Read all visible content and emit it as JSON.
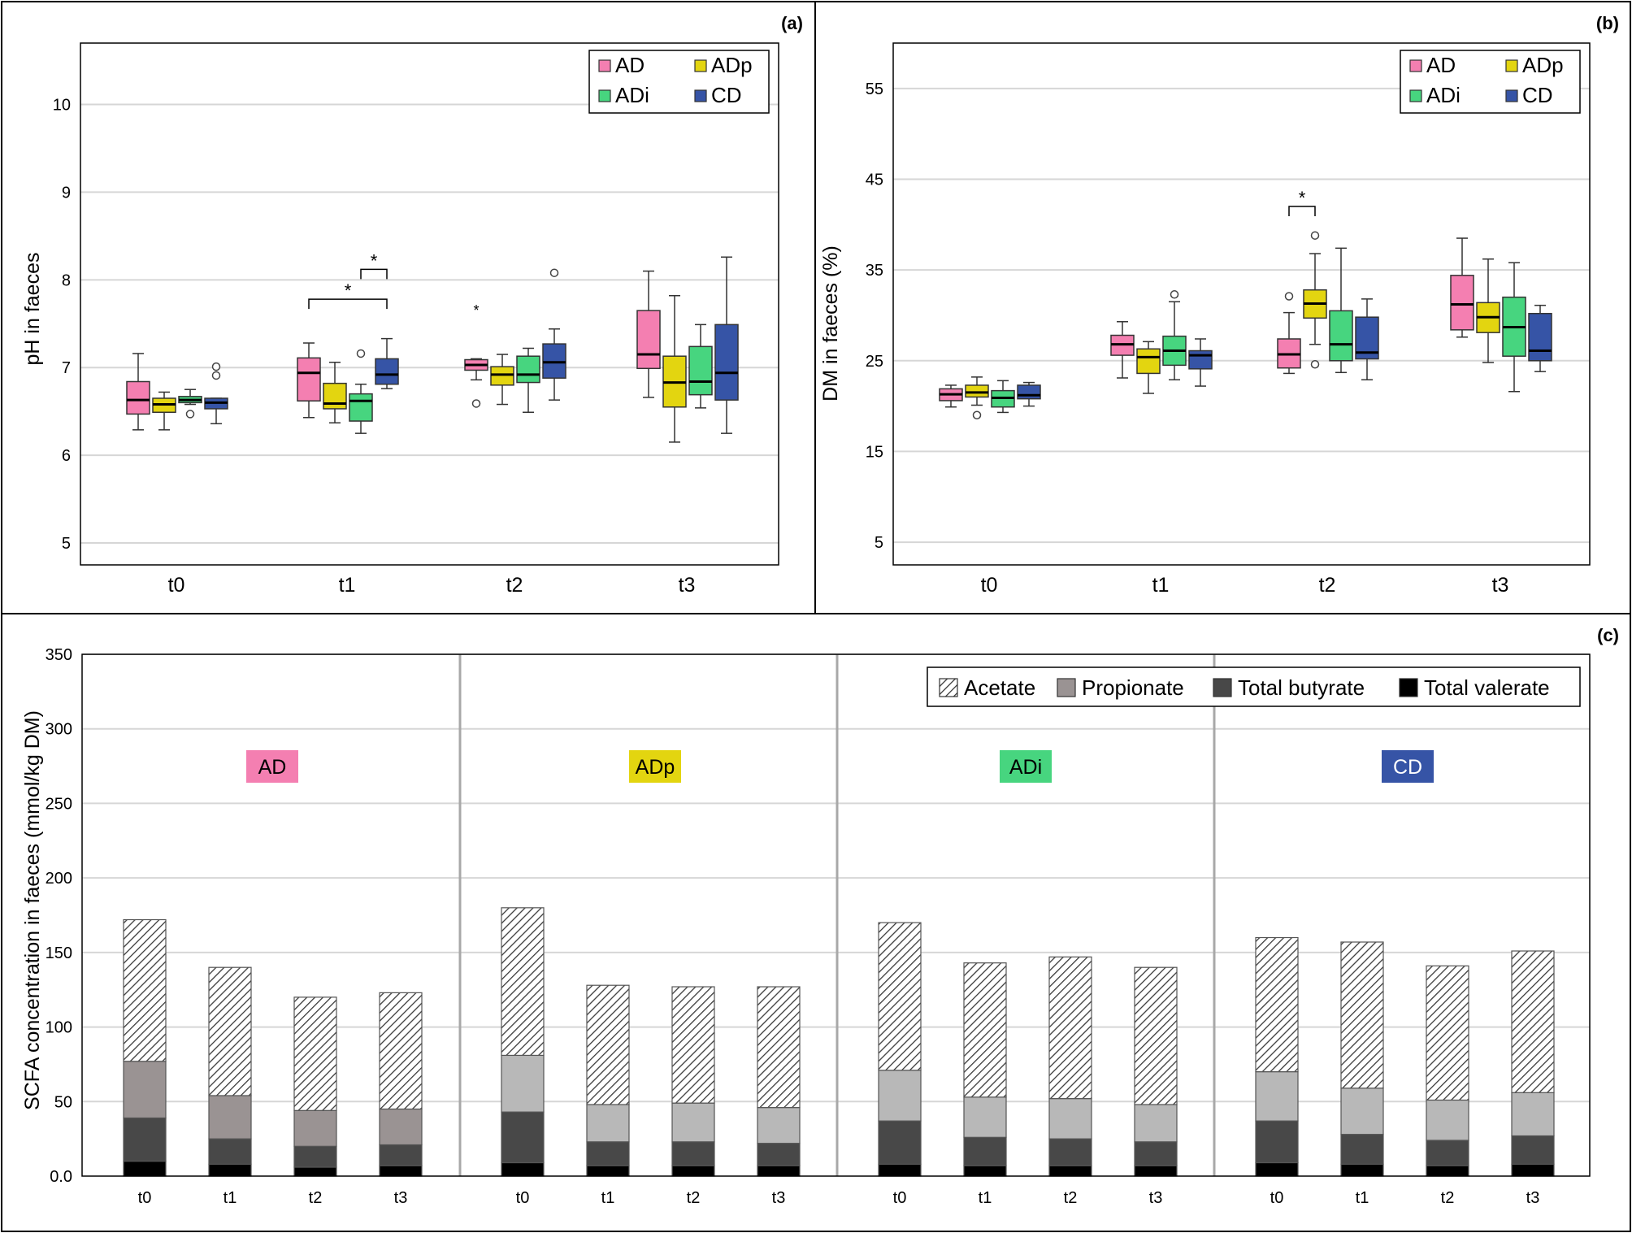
{
  "colors": {
    "AD": "#f47fb1",
    "ADp": "#e3d510",
    "ADi": "#47d57f",
    "CD": "#3654a6",
    "propionate_dark": "#9a9393",
    "propionate_light": "#b8b8b8",
    "butyrate": "#484848",
    "valerate": "#000000",
    "grid": "#d6d6d6"
  },
  "panel_a": {
    "label": "(a)",
    "ylabel": "pH in faeces",
    "ylim": [
      4.75,
      10.7
    ],
    "yticks": [
      "5",
      "6",
      "7",
      "8",
      "9",
      "10"
    ],
    "timepoints": [
      "t0",
      "t1",
      "t2",
      "t3"
    ],
    "legend": [
      "AD",
      "ADp",
      "ADi",
      "CD"
    ],
    "significance": [
      "*",
      "*"
    ]
  },
  "panel_b": {
    "label": "(b)",
    "ylabel": "DM in faeces  (%)",
    "ylim": [
      2.5,
      60
    ],
    "yticks": [
      "5",
      "15",
      "25",
      "35",
      "45",
      "55"
    ],
    "timepoints": [
      "t0",
      "t1",
      "t2",
      "t3"
    ],
    "legend": [
      "AD",
      "ADp",
      "ADi",
      "CD"
    ],
    "significance": [
      "*"
    ]
  },
  "panel_c": {
    "label": "(c)",
    "ylabel": "SCFA concentration in faeces (mmol/kg DM)",
    "yticks": [
      "0.0",
      "50",
      "100",
      "150",
      "200",
      "250",
      "300",
      "350"
    ],
    "groups": [
      "AD",
      "ADp",
      "ADi",
      "CD"
    ],
    "timepoints": [
      "t0",
      "t1",
      "t2",
      "t3"
    ],
    "legend": [
      "Acetate",
      "Propionate",
      "Total butyrate",
      "Total valerate"
    ]
  },
  "chart_data": [
    {
      "type": "box",
      "title": "(a)",
      "ylabel": "pH in faeces",
      "ylim": [
        4.75,
        10.7
      ],
      "categories": [
        "t0",
        "t1",
        "t2",
        "t3"
      ],
      "series": [
        {
          "name": "AD",
          "boxes": [
            {
              "whislo": 6.29,
              "q1": 6.47,
              "med": 6.63,
              "q3": 6.84,
              "whishi": 7.16,
              "fliers": []
            },
            {
              "whislo": 6.43,
              "q1": 6.62,
              "med": 6.94,
              "q3": 7.11,
              "whishi": 7.28,
              "fliers": []
            },
            {
              "whislo": 6.86,
              "q1": 6.97,
              "med": 7.03,
              "q3": 7.09,
              "whishi": 7.1,
              "fliers": [
                6.59
              ],
              "extremes": [
                7.67
              ]
            },
            {
              "whislo": 6.66,
              "q1": 6.99,
              "med": 7.15,
              "q3": 7.65,
              "whishi": 8.1,
              "fliers": []
            }
          ]
        },
        {
          "name": "ADp",
          "boxes": [
            {
              "whislo": 6.29,
              "q1": 6.49,
              "med": 6.58,
              "q3": 6.65,
              "whishi": 6.72,
              "fliers": []
            },
            {
              "whislo": 6.37,
              "q1": 6.53,
              "med": 6.59,
              "q3": 6.82,
              "whishi": 7.06,
              "fliers": []
            },
            {
              "whislo": 6.58,
              "q1": 6.8,
              "med": 6.92,
              "q3": 7.01,
              "whishi": 7.15,
              "fliers": []
            },
            {
              "whislo": 6.15,
              "q1": 6.55,
              "med": 6.83,
              "q3": 7.13,
              "whishi": 7.82,
              "fliers": []
            }
          ]
        },
        {
          "name": "ADi",
          "boxes": [
            {
              "whislo": 6.58,
              "q1": 6.6,
              "med": 6.63,
              "q3": 6.67,
              "whishi": 6.75,
              "fliers": [
                6.47
              ]
            },
            {
              "whislo": 6.25,
              "q1": 6.39,
              "med": 6.62,
              "q3": 6.7,
              "whishi": 6.81,
              "fliers": [
                7.16
              ]
            },
            {
              "whislo": 6.49,
              "q1": 6.83,
              "med": 6.92,
              "q3": 7.13,
              "whishi": 7.22,
              "fliers": []
            },
            {
              "whislo": 6.54,
              "q1": 6.69,
              "med": 6.84,
              "q3": 7.24,
              "whishi": 7.49,
              "fliers": []
            }
          ]
        },
        {
          "name": "CD",
          "boxes": [
            {
              "whislo": 6.36,
              "q1": 6.53,
              "med": 6.6,
              "q3": 6.65,
              "whishi": 6.65,
              "fliers": [
                6.91,
                7.01
              ]
            },
            {
              "whislo": 6.76,
              "q1": 6.81,
              "med": 6.92,
              "q3": 7.1,
              "whishi": 7.33,
              "fliers": []
            },
            {
              "whislo": 6.63,
              "q1": 6.88,
              "med": 7.06,
              "q3": 7.27,
              "whishi": 7.44,
              "fliers": [
                8.08
              ]
            },
            {
              "whislo": 6.25,
              "q1": 6.63,
              "med": 6.94,
              "q3": 7.49,
              "whishi": 8.26,
              "fliers": []
            }
          ]
        }
      ],
      "annotations": [
        {
          "text": "*",
          "timepoint": "t1",
          "between": [
            "AD",
            "CD"
          ],
          "level": 7.78
        },
        {
          "text": "*",
          "timepoint": "t1",
          "between": [
            "ADi",
            "CD"
          ],
          "level": 8.12
        }
      ]
    },
    {
      "type": "box",
      "title": "(b)",
      "ylabel": "DM in faeces  (%)",
      "ylim": [
        2.5,
        60
      ],
      "categories": [
        "t0",
        "t1",
        "t2",
        "t3"
      ],
      "series": [
        {
          "name": "AD",
          "boxes": [
            {
              "whislo": 19.9,
              "q1": 20.6,
              "med": 21.3,
              "q3": 21.9,
              "whishi": 22.3,
              "fliers": []
            },
            {
              "whislo": 23.1,
              "q1": 25.6,
              "med": 26.8,
              "q3": 27.8,
              "whishi": 29.3,
              "fliers": []
            },
            {
              "whislo": 23.6,
              "q1": 24.2,
              "med": 25.7,
              "q3": 27.4,
              "whishi": 30.3,
              "fliers": [
                32.1
              ]
            },
            {
              "whislo": 27.6,
              "q1": 28.4,
              "med": 31.2,
              "q3": 34.4,
              "whishi": 38.5,
              "fliers": []
            }
          ]
        },
        {
          "name": "ADp",
          "boxes": [
            {
              "whislo": 20.1,
              "q1": 21.0,
              "med": 21.5,
              "q3": 22.3,
              "whishi": 23.2,
              "fliers": [
                19.0
              ]
            },
            {
              "whislo": 21.4,
              "q1": 23.6,
              "med": 25.4,
              "q3": 26.3,
              "whishi": 27.1,
              "fliers": []
            },
            {
              "whislo": 26.8,
              "q1": 29.7,
              "med": 31.3,
              "q3": 32.8,
              "whishi": 36.8,
              "fliers": [
                24.6,
                38.8
              ]
            },
            {
              "whislo": 24.8,
              "q1": 28.1,
              "med": 29.8,
              "q3": 31.4,
              "whishi": 36.2,
              "fliers": []
            }
          ]
        },
        {
          "name": "ADi",
          "boxes": [
            {
              "whislo": 19.3,
              "q1": 19.9,
              "med": 20.9,
              "q3": 21.7,
              "whishi": 22.8,
              "fliers": []
            },
            {
              "whislo": 22.9,
              "q1": 24.5,
              "med": 26.1,
              "q3": 27.7,
              "whishi": 31.5,
              "fliers": [
                32.3
              ]
            },
            {
              "whislo": 23.7,
              "q1": 25.0,
              "med": 26.8,
              "q3": 30.5,
              "whishi": 37.4,
              "fliers": []
            },
            {
              "whislo": 21.6,
              "q1": 25.5,
              "med": 28.7,
              "q3": 32.0,
              "whishi": 35.8,
              "fliers": []
            }
          ]
        },
        {
          "name": "CD",
          "boxes": [
            {
              "whislo": 20.0,
              "q1": 20.8,
              "med": 21.2,
              "q3": 22.3,
              "whishi": 22.6,
              "fliers": []
            },
            {
              "whislo": 22.2,
              "q1": 24.1,
              "med": 25.6,
              "q3": 26.1,
              "whishi": 27.4,
              "fliers": []
            },
            {
              "whislo": 22.9,
              "q1": 25.2,
              "med": 25.9,
              "q3": 29.8,
              "whishi": 31.8,
              "fliers": []
            },
            {
              "whislo": 23.8,
              "q1": 25.0,
              "med": 26.1,
              "q3": 30.2,
              "whishi": 31.1,
              "fliers": []
            }
          ]
        }
      ],
      "annotations": [
        {
          "text": "*",
          "timepoint": "t2",
          "between": [
            "AD",
            "ADp"
          ],
          "level": 42.0
        }
      ]
    },
    {
      "type": "stacked_bar",
      "title": "(c)",
      "ylabel": "SCFA concentration in faeces (mmol/kg DM)",
      "ylim": [
        0,
        350
      ],
      "groups": [
        "AD",
        "ADp",
        "ADi",
        "CD"
      ],
      "categories": [
        "t0",
        "t1",
        "t2",
        "t3"
      ],
      "stack_order": [
        "Total valerate",
        "Total butyrate",
        "Propionate",
        "Acetate"
      ],
      "series": [
        {
          "name": "Total valerate",
          "values": [
            [
              10,
              8,
              6,
              7
            ],
            [
              9,
              7,
              7,
              7
            ],
            [
              8,
              7,
              7,
              7
            ],
            [
              9,
              8,
              7,
              8
            ]
          ]
        },
        {
          "name": "Total butyrate",
          "values": [
            [
              29,
              17,
              14,
              14
            ],
            [
              34,
              16,
              16,
              15
            ],
            [
              29,
              19,
              18,
              16
            ],
            [
              28,
              20,
              17,
              19
            ]
          ]
        },
        {
          "name": "Propionate",
          "values": [
            [
              38,
              29,
              24,
              24
            ],
            [
              38,
              25,
              26,
              24
            ],
            [
              34,
              27,
              27,
              25
            ],
            [
              33,
              31,
              27,
              29
            ]
          ]
        },
        {
          "name": "Acetate",
          "values": [
            [
              95,
              86,
              76,
              78
            ],
            [
              99,
              80,
              78,
              81
            ],
            [
              99,
              90,
              95,
              92
            ],
            [
              90,
              98,
              90,
              95
            ]
          ]
        }
      ],
      "totals": [
        [
          172,
          140,
          120,
          123
        ],
        [
          181,
          129,
          128,
          128
        ],
        [
          170,
          143,
          147,
          140
        ],
        [
          160,
          157,
          141,
          151
        ]
      ]
    }
  ]
}
